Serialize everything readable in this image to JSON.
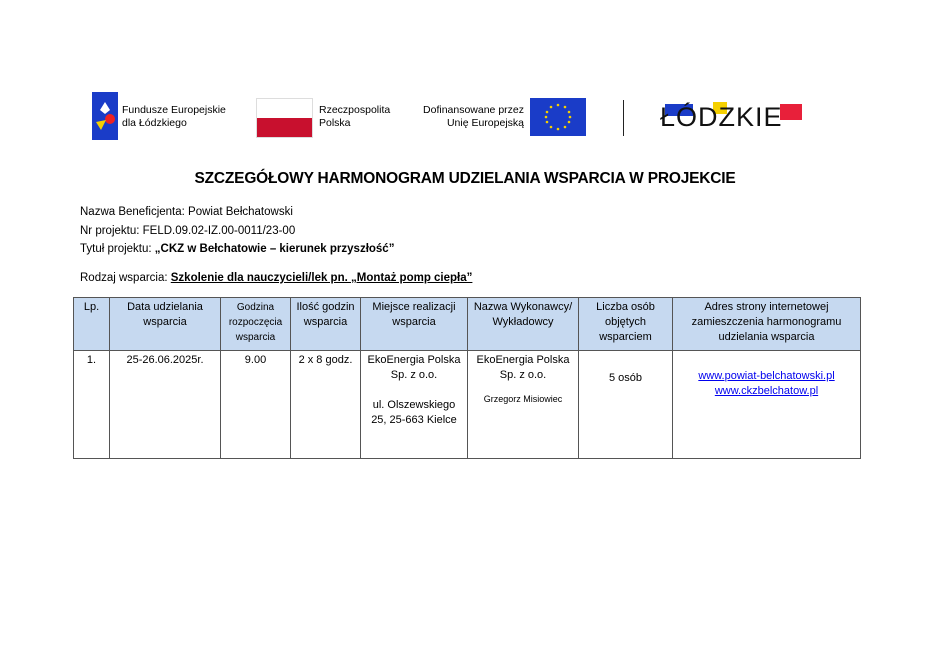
{
  "logos": {
    "fe_line1": "Fundusze Europejskie",
    "fe_line2": "dla Łódzkiego",
    "rp_line1": "Rzeczpospolita",
    "rp_line2": "Polska",
    "eu_line1": "Dofinansowane przez",
    "eu_line2": "Unię Europejską",
    "lodzkie": "ŁÓDZKIE"
  },
  "title": "SZCZEGÓŁOWY HARMONOGRAM UDZIELANIA WSPARCIA W PROJEKCIE",
  "info": {
    "beneficjent_label": "Nazwa Beneficjenta: ",
    "beneficjent": "Powiat Bełchatowski",
    "nr_label": "Nr projektu: ",
    "nr": "FELD.09.02-IZ.00-0011/23-00",
    "tytul_label": "Tytuł projektu: ",
    "tytul": "„CKZ w Bełchatowie – kierunek przyszłość”",
    "rodzaj_label": "Rodzaj wsparcia: ",
    "rodzaj": "Szkolenie dla nauczycieli/lek pn. „Montaż pomp ciepła”"
  },
  "table": {
    "headers": [
      "Lp.",
      "Data udzielania wsparcia",
      "Godzina rozpoczęcia wsparcia",
      "Ilość godzin wsparcia",
      "Miejsce realizacji wsparcia",
      "Nazwa Wykonawcy/ Wykładowcy",
      "Liczba osób objętych wsparciem",
      "Adres strony internetowej zamieszczenia harmonogramu udzielania wsparcia"
    ],
    "row": {
      "lp": "1.",
      "data": "25-26.06.2025r.",
      "godzina": "9.00",
      "ilosc": "2 x 8 godz.",
      "miejsce1": "EkoEnergia Polska Sp. z o.o.",
      "miejsce2": "ul. Olszewskiego 25, 25-663 Kielce",
      "wykonawca": "EkoEnergia Polska Sp. z o.o.",
      "wykladowca": "Grzegorz Misiowiec",
      "liczba": "5 osób",
      "link1": "www.powiat-belchatowski.pl",
      "link2": "www.ckzbelchatow.pl"
    }
  },
  "colors": {
    "header_bg": "#c6d9f0",
    "link": "#0000ee",
    "eu_blue": "#1a3cc8",
    "pl_red": "#c8102e"
  }
}
